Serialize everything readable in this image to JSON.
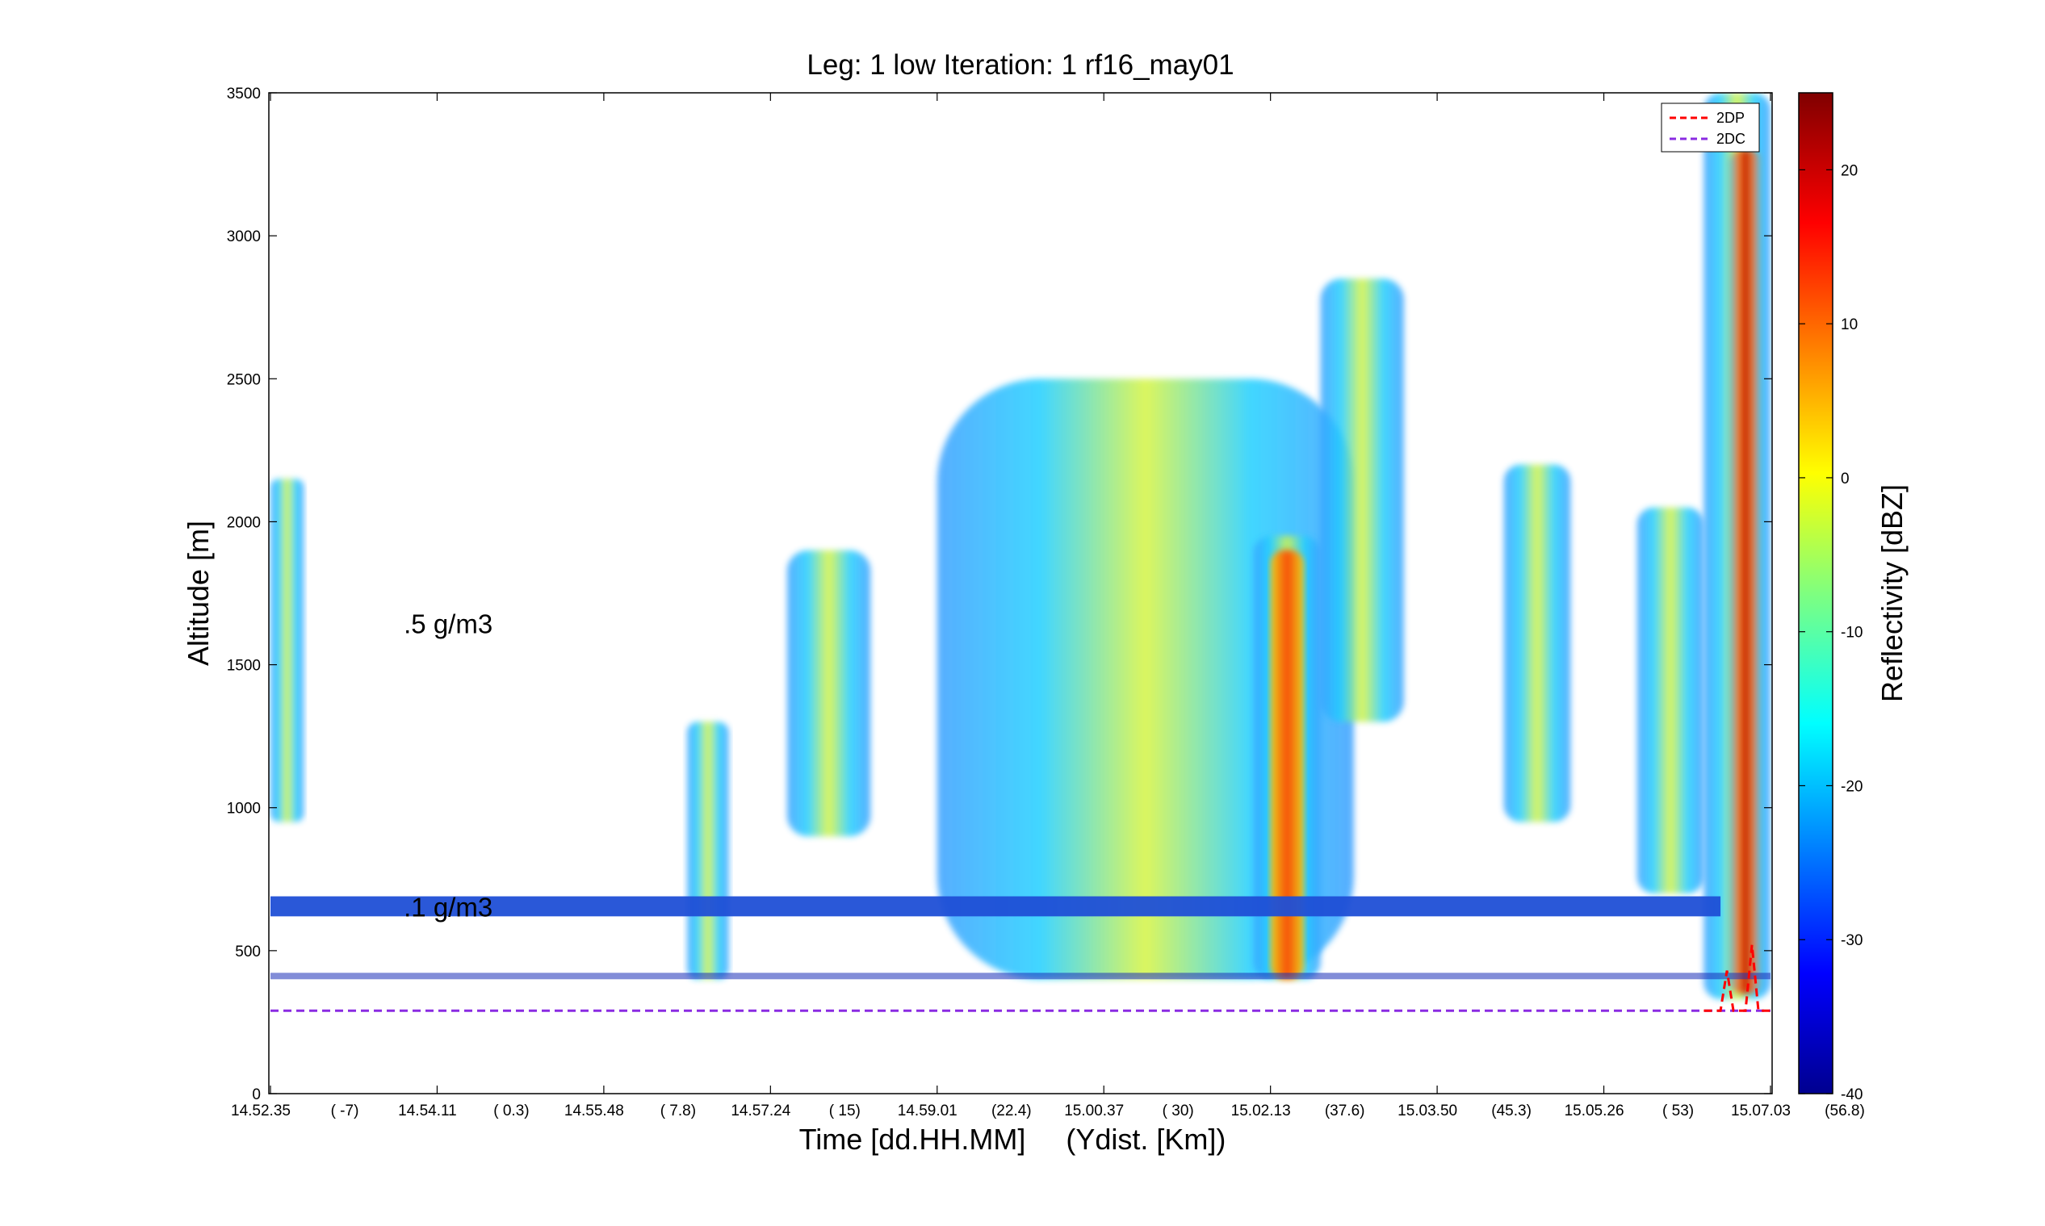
{
  "chart_data": {
    "type": "heatmap",
    "title": "Leg: 1 low Iteration: 1  rf16_may01",
    "xlabel": "Time [dd.HH.MM]     (Ydist. [Km])",
    "ylabel": "Altitude [m]",
    "ylim": [
      0,
      3500
    ],
    "yticks": [
      0,
      500,
      1000,
      1500,
      2000,
      2500,
      3000,
      3500
    ],
    "xticks": [
      {
        "time": "14.52.35",
        "dist": "(  -7)"
      },
      {
        "time": "14.54.11",
        "dist": "( 0.3)"
      },
      {
        "time": "14.55.48",
        "dist": "( 7.8)"
      },
      {
        "time": "14.57.24",
        "dist": "(  15)"
      },
      {
        "time": "14.59.01",
        "dist": "(22.4)"
      },
      {
        "time": "15.00.37",
        "dist": "(  30)"
      },
      {
        "time": "15.02.13",
        "dist": "(37.6)"
      },
      {
        "time": "15.03.50",
        "dist": "(45.3)"
      },
      {
        "time": "15.05.26",
        "dist": "(  53)"
      },
      {
        "time": "15.07.03",
        "dist": "(56.8)"
      }
    ],
    "colorbar": {
      "label": "Reflectivity [dBZ]",
      "range": [
        -40,
        25
      ],
      "ticks": [
        -40,
        -30,
        -20,
        -10,
        0,
        10,
        20
      ],
      "colormap": "jet"
    },
    "annotations": [
      {
        "text": ".5 g/m3",
        "x_index": 0.8,
        "y": 1610
      },
      {
        "text": ".1 g/m3",
        "x_index": 0.8,
        "y": 620
      }
    ],
    "legend": {
      "position": "top-right",
      "entries": [
        {
          "name": "2DP",
          "color": "#ff0000",
          "style": "dashed"
        },
        {
          "name": "2DC",
          "color": "#8a2be2",
          "style": "dashed"
        }
      ]
    },
    "series": [
      {
        "name": "2DC",
        "color": "#8a2be2",
        "level": 290
      },
      {
        "name": "2DP",
        "color": "#ff0000",
        "level": 290
      }
    ],
    "features": {
      "surface_clutter_band": [
        620,
        690
      ],
      "lower_echo_cutoff": 400,
      "clouds": [
        {
          "x": [
            0.0,
            0.2
          ],
          "y": [
            950,
            2150
          ]
        },
        {
          "x": [
            2.5,
            2.75
          ],
          "y": [
            400,
            1300
          ]
        },
        {
          "x": [
            3.1,
            3.6
          ],
          "y": [
            900,
            1900
          ]
        },
        {
          "x": [
            4.0,
            6.5
          ],
          "y": [
            400,
            2500
          ]
        },
        {
          "x": [
            5.9,
            6.3
          ],
          "y": [
            400,
            1950
          ]
        },
        {
          "x": [
            6.3,
            6.8
          ],
          "y": [
            1300,
            2850
          ]
        },
        {
          "x": [
            7.4,
            7.8
          ],
          "y": [
            950,
            2200
          ]
        },
        {
          "x": [
            8.2,
            8.6
          ],
          "y": [
            700,
            2050
          ]
        },
        {
          "x": [
            8.6,
            9.0
          ],
          "y": [
            330,
            3500
          ]
        }
      ]
    }
  }
}
